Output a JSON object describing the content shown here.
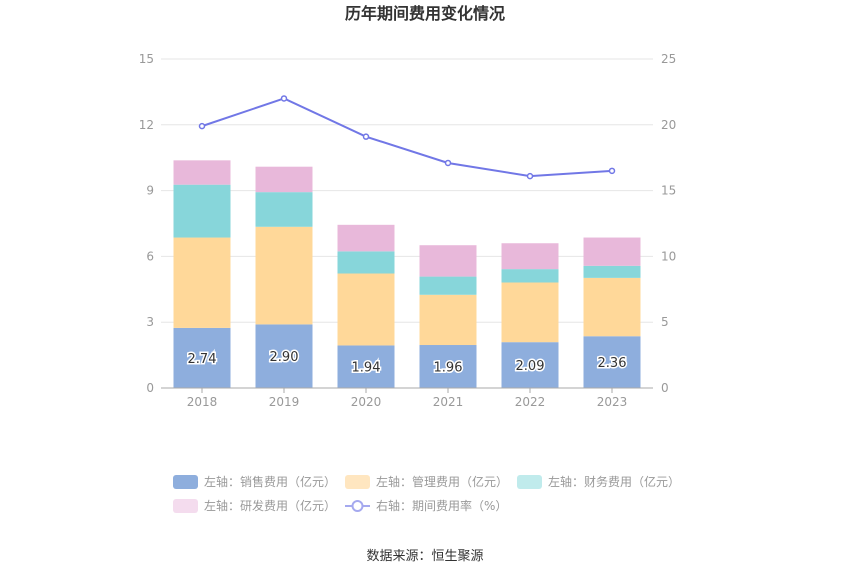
{
  "chart_data": {
    "type": "bar",
    "title": "历年期间费用变化情况",
    "categories": [
      "2018",
      "2019",
      "2020",
      "2021",
      "2022",
      "2023"
    ],
    "stacked": true,
    "y_left": {
      "ticks": [
        0,
        3,
        6,
        9,
        12,
        15
      ],
      "ylim": [
        0,
        15
      ]
    },
    "y_right": {
      "ticks": [
        0,
        5,
        10,
        15,
        20,
        25
      ],
      "ylim": [
        0,
        25
      ]
    },
    "grid": true,
    "series": [
      {
        "name": "左轴：销售费用（亿元）",
        "axis": "left",
        "type": "bar",
        "color": "#8eaedd",
        "values": [
          2.74,
          2.9,
          1.94,
          1.96,
          2.09,
          2.36
        ],
        "labels": [
          "2.74",
          "2.90",
          "1.94",
          "1.96",
          "2.09",
          "2.36"
        ]
      },
      {
        "name": "左轴：管理费用（亿元）",
        "axis": "left",
        "type": "bar",
        "color": "#ffd899",
        "values": [
          4.12,
          4.45,
          3.28,
          2.29,
          2.72,
          2.66
        ]
      },
      {
        "name": "左轴：财务费用（亿元）",
        "axis": "left",
        "type": "bar",
        "color": "#87d6da",
        "values": [
          2.41,
          1.58,
          1.01,
          0.83,
          0.61,
          0.55
        ]
      },
      {
        "name": "左轴：研发费用（亿元）",
        "axis": "left",
        "type": "bar",
        "color": "#e8b8da",
        "values": [
          1.11,
          1.16,
          1.21,
          1.43,
          1.18,
          1.29
        ]
      },
      {
        "name": "右轴：期间费用率（%）",
        "axis": "right",
        "type": "line",
        "color": "#7177e6",
        "values": [
          19.9,
          22.0,
          19.1,
          17.1,
          16.1,
          16.5
        ]
      }
    ],
    "legend": {
      "placement": "bottom",
      "items": [
        {
          "label": "左轴：销售费用（亿元）",
          "color": "#8eaedd",
          "kind": "box"
        },
        {
          "label": "左轴：管理费用（亿元）",
          "color": "#ffe6c0",
          "kind": "box"
        },
        {
          "label": "左轴：财务费用（亿元）",
          "color": "#c0ebec",
          "kind": "box"
        },
        {
          "label": "左轴：研发费用（亿元）",
          "color": "#f4dcee",
          "kind": "box"
        },
        {
          "label": "右轴：期间费用率（%）",
          "color": "#a5a9ef",
          "kind": "line"
        }
      ]
    },
    "source": "数据来源：恒生聚源"
  }
}
